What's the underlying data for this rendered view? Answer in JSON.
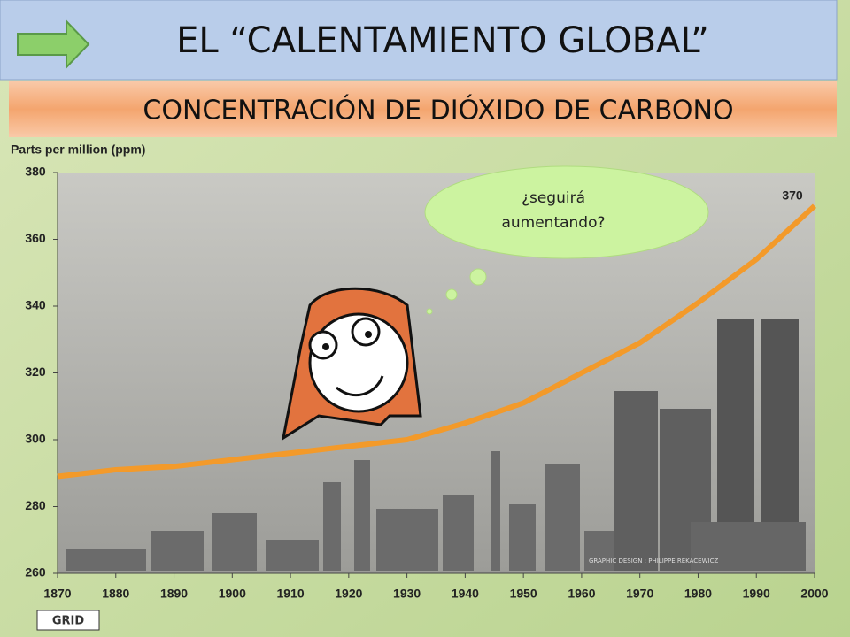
{
  "chart_data": {
    "type": "line",
    "title": "EL “CALENTAMIENTO GLOBAL”",
    "subtitle": "CONCENTRACIÓN DE DIÓXIDO DE CARBONO",
    "y_label": "Parts per million (ppm)",
    "x": [
      1870,
      1880,
      1890,
      1900,
      1910,
      1920,
      1930,
      1940,
      1950,
      1960,
      1970,
      1980,
      1990,
      2000
    ],
    "series": [
      {
        "name": "CO2",
        "color": "#f39a2a",
        "values": [
          289,
          291,
          292,
          294,
          296,
          298,
          300,
          305,
          311,
          320,
          329,
          341,
          354,
          370
        ]
      }
    ],
    "end_label": "370",
    "thought_bubble": [
      "¿seguirá",
      "aumentando?"
    ],
    "credit": "GRAPHIC DESIGN : PHILIPPE REKACEWICZ",
    "logo": "GRID",
    "xlim": [
      1870,
      2000
    ],
    "xticks": [
      1870,
      1880,
      1890,
      1900,
      1910,
      1920,
      1930,
      1940,
      1950,
      1960,
      1970,
      1980,
      1990,
      2000
    ],
    "ylim": [
      260,
      380
    ],
    "yticks": [
      260,
      280,
      300,
      320,
      340,
      360,
      380
    ],
    "grid": false
  }
}
